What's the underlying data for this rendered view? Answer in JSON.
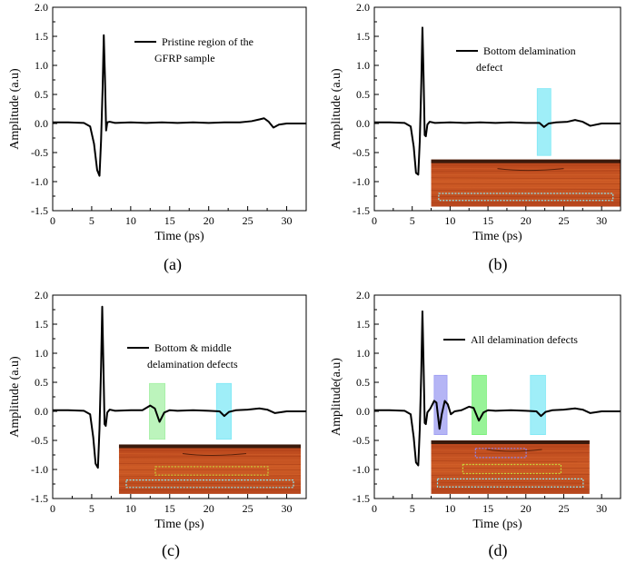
{
  "chart_data": [
    {
      "type": "line",
      "panel_label": "(a)",
      "xlabel": "Time (ps)",
      "ylabel": "Amplitude (a.u)",
      "xlim": [
        0,
        32.5
      ],
      "ylim": [
        -1.5,
        2.0
      ],
      "x_ticks": [
        0,
        5,
        10,
        15,
        20,
        25,
        30
      ],
      "y_ticks": [
        -1.5,
        -1.0,
        -0.5,
        0.0,
        0.5,
        1.0,
        1.5,
        2.0
      ],
      "legend": [
        "Pristine region of the",
        "GFRP sample"
      ],
      "series": [
        {
          "name": "Pristine region of the GFRP sample",
          "x": [
            0,
            2,
            4,
            4.8,
            5.3,
            5.7,
            6.0,
            6.2,
            6.4,
            6.55,
            6.7,
            6.85,
            7.0,
            7.3,
            8,
            10,
            12,
            14,
            16,
            18,
            20,
            22,
            24,
            25.5,
            26.5,
            27.1,
            27.7,
            28.3,
            29,
            30,
            32.5
          ],
          "y": [
            0.02,
            0.02,
            0.01,
            -0.05,
            -0.35,
            -0.8,
            -0.9,
            -0.3,
            0.6,
            1.52,
            0.8,
            -0.12,
            0.02,
            0.03,
            0.01,
            0.02,
            0.01,
            0.02,
            0.01,
            0.02,
            0.01,
            0.02,
            0.02,
            0.04,
            0.07,
            0.09,
            0.03,
            -0.07,
            -0.02,
            0.0,
            0.0
          ]
        }
      ],
      "highlights": [],
      "inset": null
    },
    {
      "type": "line",
      "panel_label": "(b)",
      "xlabel": "Time (ps)",
      "ylabel": "Amplitude (a.u)",
      "xlim": [
        0,
        32.5
      ],
      "ylim": [
        -1.5,
        2.0
      ],
      "x_ticks": [
        0,
        5,
        10,
        15,
        20,
        25,
        30
      ],
      "y_ticks": [
        -1.5,
        -1.0,
        -0.5,
        0.0,
        0.5,
        1.0,
        1.5,
        2.0
      ],
      "legend": [
        "Bottom delamination",
        "defect"
      ],
      "series": [
        {
          "name": "Bottom delamination defect",
          "x": [
            0,
            2,
            4,
            4.8,
            5.2,
            5.5,
            5.8,
            6.0,
            6.2,
            6.35,
            6.5,
            6.65,
            6.8,
            7.0,
            7.3,
            8,
            10,
            12,
            14,
            16,
            18,
            20,
            21.8,
            22.4,
            23,
            24,
            25.5,
            26.5,
            27.5,
            28.5,
            30,
            32.5
          ],
          "y": [
            0.02,
            0.02,
            0.01,
            -0.05,
            -0.4,
            -0.85,
            -0.88,
            -0.3,
            0.7,
            1.65,
            0.8,
            -0.2,
            -0.22,
            -0.02,
            0.03,
            0.01,
            0.02,
            0.01,
            0.02,
            0.01,
            0.02,
            0.01,
            0.01,
            -0.06,
            0.0,
            0.02,
            0.03,
            0.06,
            0.03,
            -0.04,
            0.0,
            0.0
          ]
        }
      ],
      "highlights": [
        {
          "x_range": [
            21.5,
            23.3
          ],
          "y_range": [
            -0.55,
            0.6
          ],
          "color": "#7fe8f5"
        }
      ],
      "inset": {
        "layers": 1,
        "x_range": [
          7.5,
          32.5
        ],
        "y_range": [
          -1.43,
          -0.62
        ]
      }
    },
    {
      "type": "line",
      "panel_label": "(c)",
      "xlabel": "Time (ps)",
      "ylabel": "Amplitude (a.u)",
      "xlim": [
        0,
        32.5
      ],
      "ylim": [
        -1.5,
        2.0
      ],
      "x_ticks": [
        0,
        5,
        10,
        15,
        20,
        25,
        30
      ],
      "y_ticks": [
        -1.5,
        -1.0,
        -0.5,
        0.0,
        0.5,
        1.0,
        1.5,
        2.0
      ],
      "legend": [
        "Bottom & middle",
        "delamination defects"
      ],
      "series": [
        {
          "name": "Bottom & middle delamination defects",
          "x": [
            0,
            2,
            4,
            4.8,
            5.2,
            5.5,
            5.8,
            6.0,
            6.2,
            6.35,
            6.5,
            6.65,
            6.8,
            7.0,
            7.3,
            8,
            10,
            11.5,
            12.5,
            13.1,
            13.7,
            14.3,
            15,
            16,
            18,
            20,
            21.4,
            22,
            22.6,
            23.5,
            25,
            26.5,
            27.5,
            28.5,
            30,
            32.5
          ],
          "y": [
            0.02,
            0.02,
            0.01,
            -0.05,
            -0.45,
            -0.9,
            -0.97,
            -0.3,
            0.75,
            1.8,
            0.8,
            -0.22,
            -0.25,
            -0.02,
            0.03,
            0.01,
            0.02,
            0.02,
            0.1,
            0.05,
            -0.18,
            -0.02,
            0.02,
            0.01,
            0.02,
            0.01,
            0.0,
            -0.08,
            -0.01,
            0.02,
            0.03,
            0.05,
            0.03,
            -0.03,
            0.0,
            0.0
          ]
        }
      ],
      "highlights": [
        {
          "x_range": [
            12.4,
            14.4
          ],
          "y_range": [
            -0.48,
            0.48
          ],
          "color": "#a5f0a5"
        },
        {
          "x_range": [
            21.0,
            22.9
          ],
          "y_range": [
            -0.48,
            0.48
          ],
          "color": "#7fe8f5"
        }
      ],
      "inset": {
        "layers": 2,
        "x_range": [
          8.5,
          31.8
        ],
        "y_range": [
          -1.42,
          -0.57
        ]
      }
    },
    {
      "type": "line",
      "panel_label": "(d)",
      "xlabel": "Time (ps)",
      "ylabel": "Amplitude(a.u)",
      "xlim": [
        0,
        32.5
      ],
      "ylim": [
        -1.5,
        2.0
      ],
      "x_ticks": [
        0,
        5,
        10,
        15,
        20,
        25,
        30
      ],
      "y_ticks": [
        -1.5,
        -1.0,
        -0.5,
        0.0,
        0.5,
        1.0,
        1.5,
        2.0
      ],
      "legend": [
        "All delamination defects"
      ],
      "series": [
        {
          "name": "All delamination defects",
          "x": [
            0,
            2,
            4,
            4.8,
            5.2,
            5.5,
            5.8,
            6.0,
            6.2,
            6.35,
            6.5,
            6.65,
            6.8,
            7.0,
            7.4,
            7.9,
            8.2,
            8.6,
            8.9,
            9.3,
            9.7,
            10.1,
            10.6,
            11.5,
            12.5,
            13.1,
            13.8,
            14.4,
            15,
            16,
            18,
            20,
            21.4,
            22,
            22.6,
            23.5,
            25,
            26.5,
            27.5,
            28.5,
            30,
            32.5
          ],
          "y": [
            0.02,
            0.02,
            0.01,
            -0.05,
            -0.45,
            -0.88,
            -0.93,
            -0.3,
            0.7,
            1.72,
            0.8,
            -0.2,
            -0.22,
            -0.02,
            0.05,
            0.18,
            0.15,
            -0.3,
            -0.05,
            0.18,
            0.12,
            -0.05,
            0.0,
            0.02,
            0.08,
            0.06,
            -0.16,
            -0.02,
            0.02,
            0.01,
            0.02,
            0.01,
            0.0,
            -0.08,
            -0.01,
            0.02,
            0.03,
            0.05,
            0.03,
            -0.03,
            0.0,
            0.0
          ]
        }
      ],
      "highlights": [
        {
          "x_range": [
            7.9,
            9.6
          ],
          "y_range": [
            -0.4,
            0.62
          ],
          "color": "#9c9cf2"
        },
        {
          "x_range": [
            12.9,
            14.8
          ],
          "y_range": [
            -0.4,
            0.62
          ],
          "color": "#76ef76"
        },
        {
          "x_range": [
            20.6,
            22.6
          ],
          "y_range": [
            -0.4,
            0.62
          ],
          "color": "#7fe8f5"
        }
      ],
      "inset": {
        "layers": 3,
        "x_range": [
          7.5,
          28.4
        ],
        "y_range": [
          -1.42,
          -0.5
        ]
      }
    }
  ]
}
